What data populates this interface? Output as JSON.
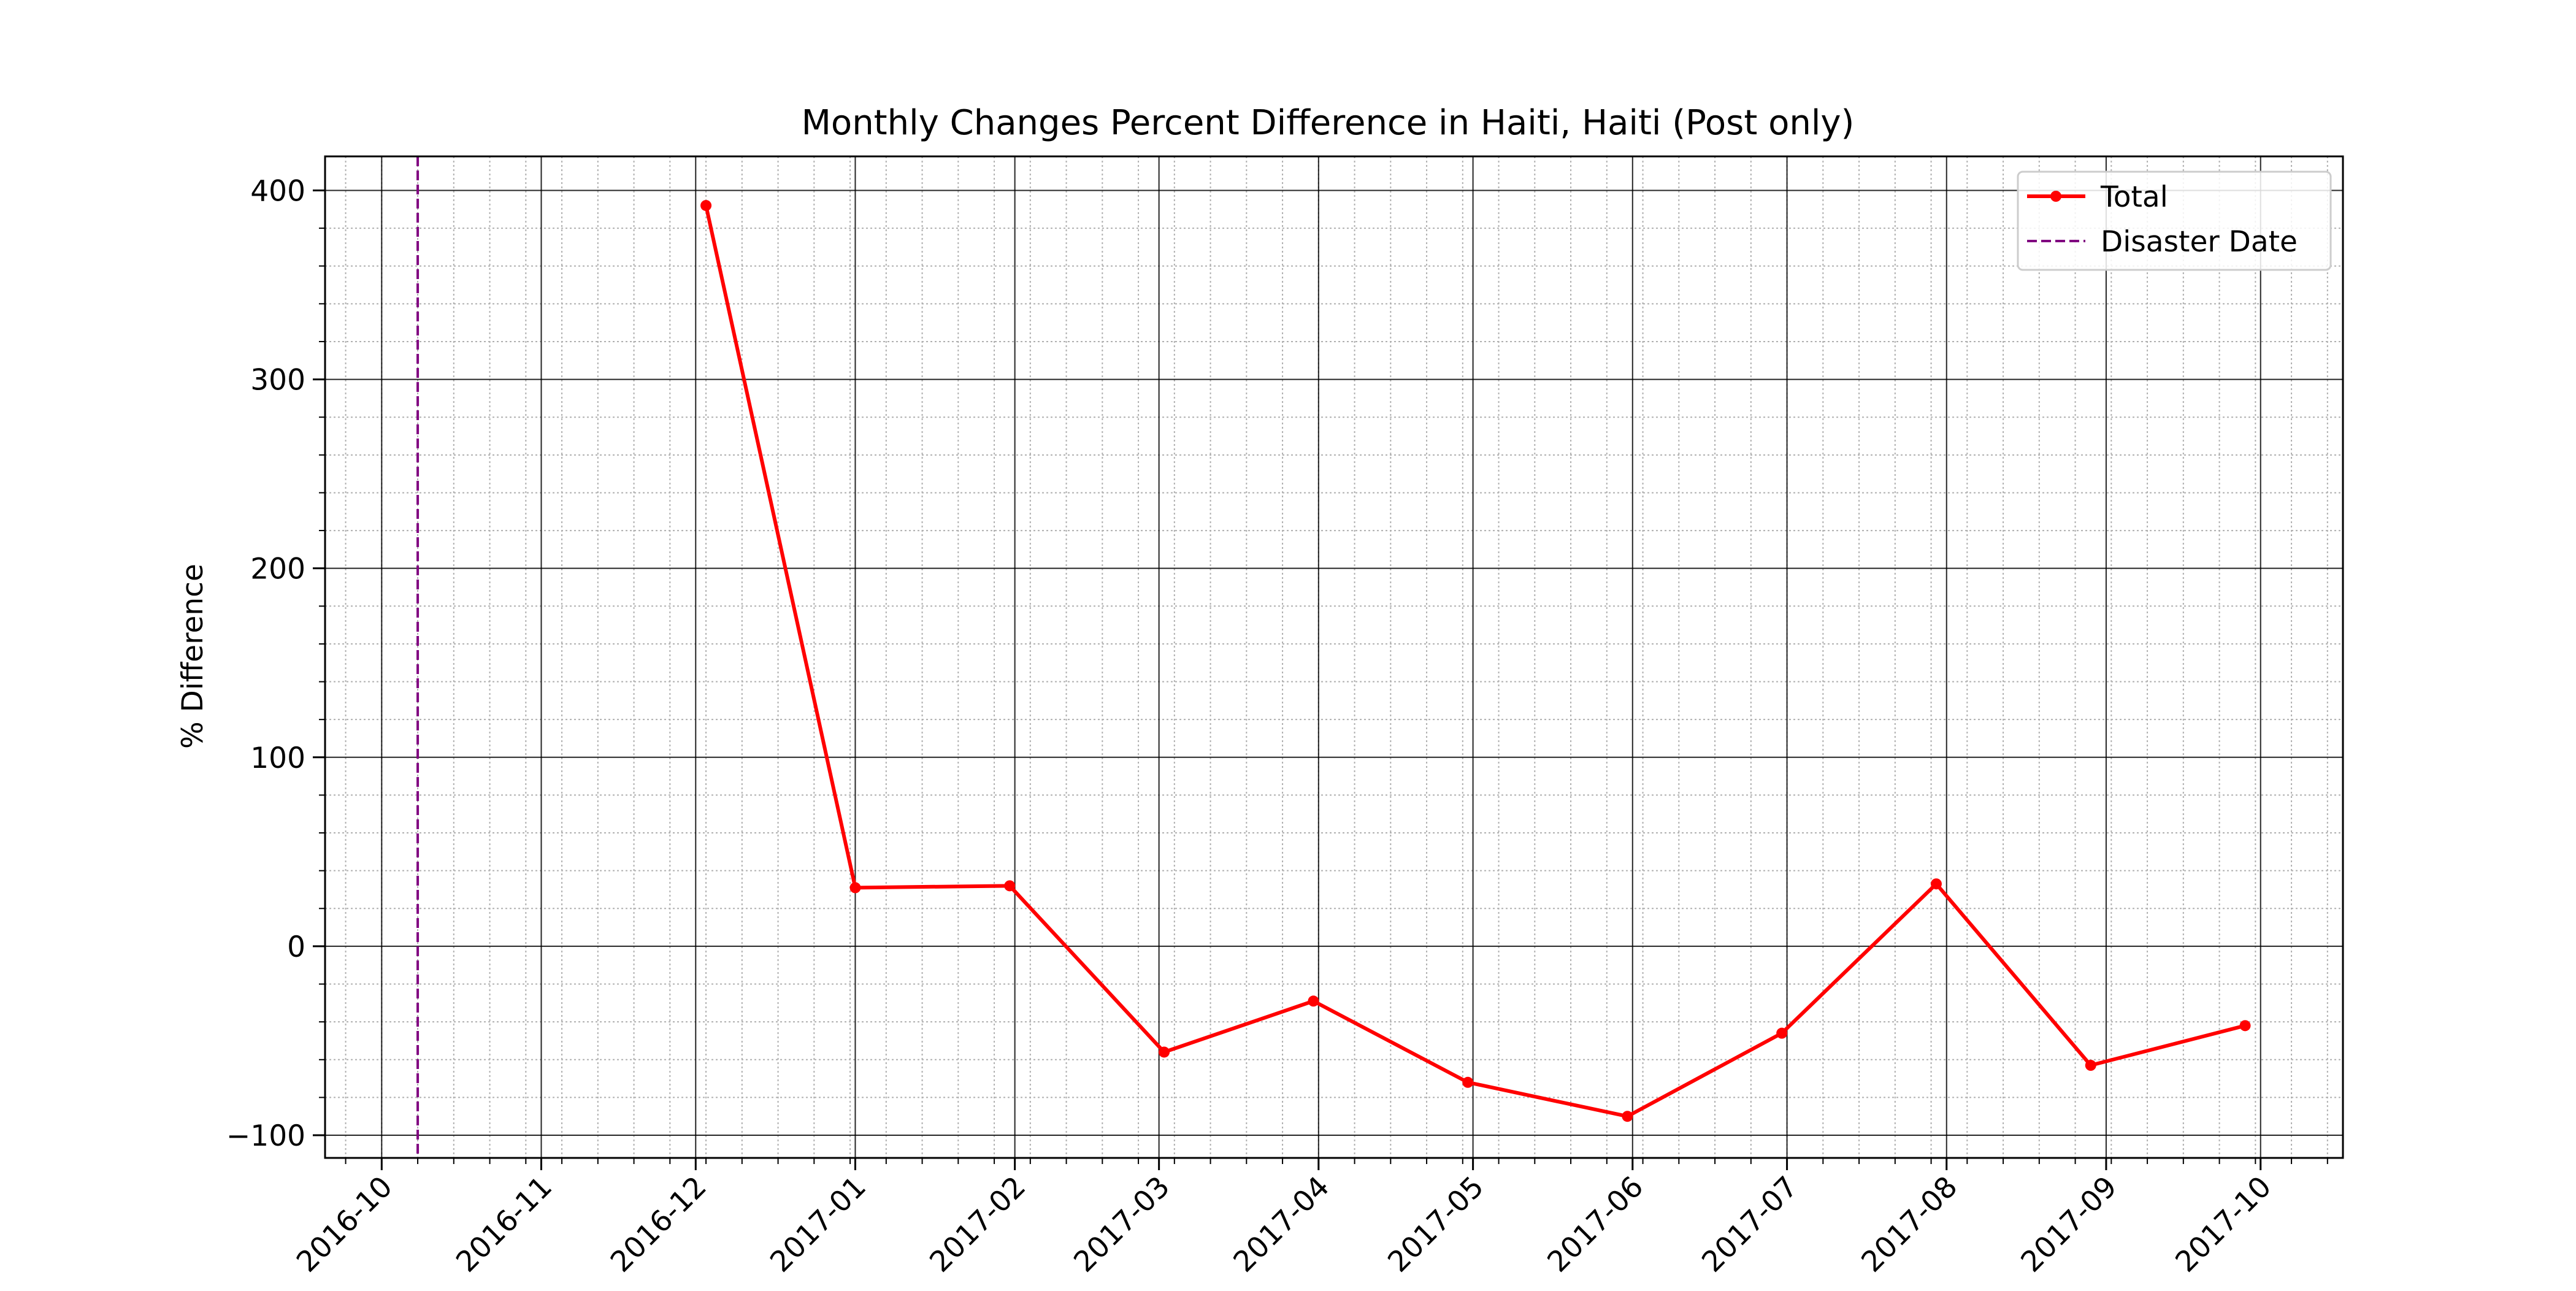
{
  "chart_data": {
    "type": "line",
    "title": "Monthly Changes Percent Difference in Haiti, Haiti (Post only)",
    "xlabel": "",
    "ylabel": "% Difference",
    "xlim": [
      "2016-09-20",
      "2017-10-17"
    ],
    "ylim": [
      -112,
      418
    ],
    "x_ticks": [
      "2016-10",
      "2016-11",
      "2016-12",
      "2017-01",
      "2017-02",
      "2017-03",
      "2017-04",
      "2017-05",
      "2017-06",
      "2017-07",
      "2017-08",
      "2017-09",
      "2017-10"
    ],
    "y_ticks": [
      400,
      300,
      200,
      100,
      0,
      -100
    ],
    "grid": true,
    "minor_grid": true,
    "legend_position": "top-right",
    "series": [
      {
        "name": "Total",
        "color": "#ff0000",
        "marker": "circle",
        "points": [
          {
            "x": "2016-12-03",
            "y": 392
          },
          {
            "x": "2017-01-01",
            "y": 31
          },
          {
            "x": "2017-01-31",
            "y": 32
          },
          {
            "x": "2017-03-02",
            "y": -56
          },
          {
            "x": "2017-03-31",
            "y": -29
          },
          {
            "x": "2017-04-30",
            "y": -72
          },
          {
            "x": "2017-05-31",
            "y": -90
          },
          {
            "x": "2017-06-30",
            "y": -46
          },
          {
            "x": "2017-07-30",
            "y": 33
          },
          {
            "x": "2017-08-29",
            "y": -63
          },
          {
            "x": "2017-09-28",
            "y": -42
          }
        ]
      }
    ],
    "reference_lines": [
      {
        "name": "Disaster Date",
        "x": "2016-10-08",
        "color": "#800080",
        "style": "dashed"
      }
    ]
  }
}
